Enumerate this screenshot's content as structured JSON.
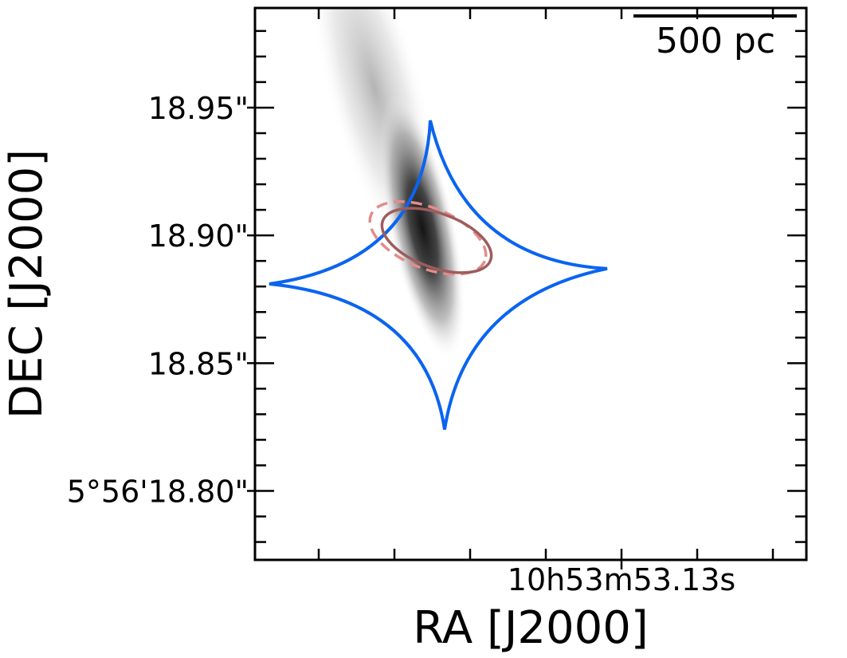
{
  "chart_data": {
    "type": "scatter",
    "title": "",
    "xlabel": "RA [J2000]",
    "ylabel": "DEC [J2000]",
    "x_tick_labels": [
      "10h53m53.13s"
    ],
    "y_tick_labels": [
      "18.95\"",
      "18.90\"",
      "18.85\"",
      "5°56'18.80\""
    ],
    "y_ticks": [
      18.95,
      18.9,
      18.85,
      18.8
    ],
    "ylim": [
      18.773,
      18.989
    ],
    "scale_bar_label": "500 pc",
    "grid": false,
    "legend": "none",
    "colors": {
      "caustic": "#0a64f0",
      "ellipse_solid": "#9e5c5c",
      "ellipse_dashed": "#e38c8c",
      "background_image": "grayscale"
    },
    "series": [
      {
        "kind": "caustic",
        "style": "solid",
        "cusps_dec": [
          18.945,
          18.887,
          18.824,
          18.881
        ]
      },
      {
        "kind": "ellipse",
        "style": "solid",
        "center_dec": 18.898,
        "minor_axis_dec": 0.022,
        "major_axis_arcsec": 0.046,
        "angle_deg": -20
      },
      {
        "kind": "ellipse",
        "style": "dashed",
        "center_dec": 18.899,
        "minor_axis_dec": 0.026,
        "major_axis_arcsec": 0.047,
        "angle_deg": -22
      },
      {
        "kind": "image",
        "style": "grayscale",
        "colormap": "Greys",
        "peak_dec": 18.901,
        "extent_dec": [
          18.86,
          18.989
        ],
        "angle_deg": 15
      }
    ]
  }
}
